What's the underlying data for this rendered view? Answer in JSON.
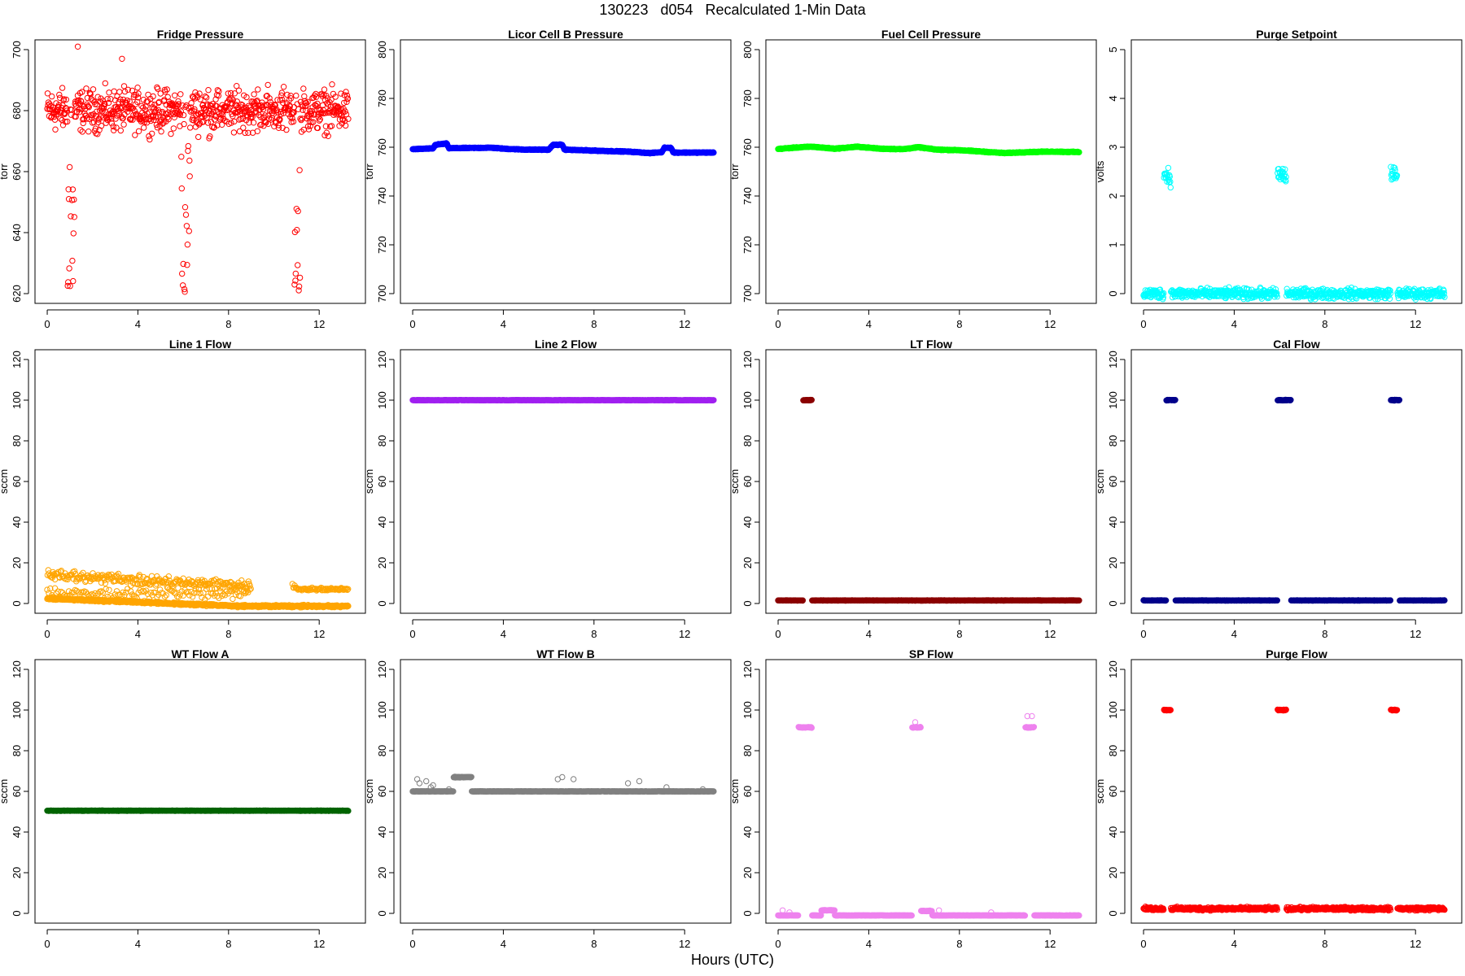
{
  "title": "130223   d054   Recalculated 1-Min Data",
  "xlabel": "Hours (UTC)",
  "chart_data": [
    {
      "type": "scatter",
      "title": "Fridge Pressure",
      "ylabel": "torr",
      "color": "#ff0000",
      "xlim": [
        0,
        13.5
      ],
      "ylim": [
        620,
        700
      ],
      "xticks": [
        0,
        4,
        8,
        12
      ],
      "yticks": [
        620,
        640,
        660,
        680,
        700
      ],
      "pattern": "scatter",
      "base": 680,
      "spread": 10,
      "dips": [
        [
          0.9,
          1.2,
          618,
          665
        ],
        [
          5.9,
          6.3,
          617,
          670
        ],
        [
          10.9,
          11.2,
          619,
          668
        ]
      ],
      "extra": [
        [
          1.35,
          701
        ],
        [
          3.3,
          697
        ]
      ]
    },
    {
      "type": "scatter",
      "title": "Licor Cell B Pressure",
      "ylabel": "torr",
      "color": "#0000ff",
      "xlim": [
        0,
        13.5
      ],
      "ylim": [
        700,
        800
      ],
      "xticks": [
        0,
        4,
        8,
        12
      ],
      "yticks": [
        700,
        720,
        740,
        760,
        780,
        800
      ],
      "pattern": "line",
      "points": [
        [
          0,
          759.2
        ],
        [
          0.9,
          759.5
        ],
        [
          1.0,
          761
        ],
        [
          1.5,
          761.5
        ],
        [
          1.6,
          759.6
        ],
        [
          3.5,
          759.8
        ],
        [
          4.0,
          759.4
        ],
        [
          5.0,
          759
        ],
        [
          6.0,
          759
        ],
        [
          6.2,
          761
        ],
        [
          6.6,
          761
        ],
        [
          6.7,
          759
        ],
        [
          8,
          758.6
        ],
        [
          9.5,
          758.2
        ],
        [
          10.5,
          757.6
        ],
        [
          11.0,
          758
        ],
        [
          11.1,
          759.8
        ],
        [
          11.4,
          759.8
        ],
        [
          11.5,
          757.8
        ],
        [
          13.3,
          757.8
        ]
      ]
    },
    {
      "type": "scatter",
      "title": "Fuel Cell Pressure",
      "ylabel": "torr",
      "color": "#00ff00",
      "xlim": [
        0,
        13.5
      ],
      "ylim": [
        700,
        800
      ],
      "xticks": [
        0,
        4,
        8,
        12
      ],
      "yticks": [
        700,
        720,
        740,
        760,
        780,
        800
      ],
      "pattern": "line",
      "points": [
        [
          0,
          759.3
        ],
        [
          1.0,
          760.0
        ],
        [
          1.5,
          760.2
        ],
        [
          2.5,
          759.4
        ],
        [
          3.5,
          760.2
        ],
        [
          4.5,
          759.4
        ],
        [
          5.5,
          759.2
        ],
        [
          6.2,
          760.0
        ],
        [
          7.0,
          759.0
        ],
        [
          8.0,
          758.8
        ],
        [
          9.0,
          758.2
        ],
        [
          10.0,
          757.6
        ],
        [
          11.0,
          758.0
        ],
        [
          12.0,
          758.2
        ],
        [
          13.3,
          758.0
        ]
      ]
    },
    {
      "type": "scatter",
      "title": "Purge Setpoint",
      "ylabel": "volts",
      "color": "#00ffff",
      "xlim": [
        0,
        13.5
      ],
      "ylim": [
        0,
        5
      ],
      "xticks": [
        0,
        4,
        8,
        12
      ],
      "yticks": [
        0,
        1,
        2,
        3,
        4,
        5
      ],
      "pattern": "flat",
      "base": 0,
      "blocks": [
        [
          0.9,
          1.2,
          2.42
        ],
        [
          5.9,
          6.3,
          2.42
        ],
        [
          10.9,
          11.2,
          2.42
        ]
      ]
    },
    {
      "type": "scatter",
      "title": "Line 1 Flow",
      "ylabel": "sccm",
      "color": "#ffa500",
      "xlim": [
        0,
        13.5
      ],
      "ylim": [
        0,
        120
      ],
      "xticks": [
        0,
        4,
        8,
        12
      ],
      "yticks": [
        0,
        20,
        40,
        60,
        80,
        100,
        120
      ],
      "pattern": "decay"
    },
    {
      "type": "scatter",
      "title": "Line 2 Flow",
      "ylabel": "sccm",
      "color": "#a020f0",
      "xlim": [
        0,
        13.5
      ],
      "ylim": [
        0,
        120
      ],
      "xticks": [
        0,
        4,
        8,
        12
      ],
      "yticks": [
        0,
        20,
        40,
        60,
        80,
        100,
        120
      ],
      "pattern": "flat",
      "base": 100,
      "blocks": []
    },
    {
      "type": "scatter",
      "title": "LT Flow",
      "ylabel": "sccm",
      "color": "#8b0000",
      "xlim": [
        0,
        13.5
      ],
      "ylim": [
        0,
        120
      ],
      "xticks": [
        0,
        4,
        8,
        12
      ],
      "yticks": [
        0,
        20,
        40,
        60,
        80,
        100,
        120
      ],
      "pattern": "flat",
      "base": 1.5,
      "blocks": [
        [
          1.1,
          1.5,
          100
        ]
      ]
    },
    {
      "type": "scatter",
      "title": "Cal Flow",
      "ylabel": "sccm",
      "color": "#00008b",
      "xlim": [
        0,
        13.5
      ],
      "ylim": [
        0,
        120
      ],
      "xticks": [
        0,
        4,
        8,
        12
      ],
      "yticks": [
        0,
        20,
        40,
        60,
        80,
        100,
        120
      ],
      "pattern": "flat",
      "base": 1.5,
      "blocks": [
        [
          1.0,
          1.4,
          100
        ],
        [
          5.9,
          6.5,
          100
        ],
        [
          10.9,
          11.3,
          100
        ]
      ]
    },
    {
      "type": "scatter",
      "title": "WT Flow A",
      "ylabel": "sccm",
      "color": "#006400",
      "xlim": [
        0,
        13.5
      ],
      "ylim": [
        0,
        120
      ],
      "xticks": [
        0,
        4,
        8,
        12
      ],
      "yticks": [
        0,
        20,
        40,
        60,
        80,
        100,
        120
      ],
      "pattern": "flat",
      "base": 50.5,
      "blocks": []
    },
    {
      "type": "scatter",
      "title": "WT Flow B",
      "ylabel": "sccm",
      "color": "#808080",
      "xlim": [
        0,
        13.5
      ],
      "ylim": [
        0,
        120
      ],
      "xticks": [
        0,
        4,
        8,
        12
      ],
      "yticks": [
        0,
        20,
        40,
        60,
        80,
        100,
        120
      ],
      "pattern": "flat",
      "base": 60,
      "blocks": [
        [
          1.8,
          2.6,
          67
        ]
      ],
      "extra": [
        [
          0.2,
          66
        ],
        [
          0.3,
          64
        ],
        [
          0.6,
          65
        ],
        [
          0.8,
          62
        ],
        [
          0.9,
          63
        ],
        [
          1.6,
          61
        ],
        [
          6.4,
          66
        ],
        [
          6.6,
          67
        ],
        [
          7.1,
          66
        ],
        [
          9.5,
          64
        ],
        [
          10.0,
          65
        ],
        [
          11.2,
          62
        ],
        [
          12.8,
          61
        ]
      ]
    },
    {
      "type": "scatter",
      "title": "SP Flow",
      "ylabel": "sccm",
      "color": "#ee82ee",
      "xlim": [
        0,
        13.5
      ],
      "ylim": [
        0,
        120
      ],
      "xticks": [
        0,
        4,
        8,
        12
      ],
      "yticks": [
        0,
        20,
        40,
        60,
        80,
        100,
        120
      ],
      "pattern": "flat",
      "base": -1,
      "blocks": [
        [
          0.9,
          1.5,
          91.5
        ],
        [
          1.9,
          2.5,
          1.5
        ],
        [
          5.9,
          6.5,
          91.5
        ],
        [
          10.9,
          11.3,
          91.5
        ],
        [
          6.3,
          6.8,
          1.2
        ]
      ],
      "extra": [
        [
          0.2,
          1.5
        ],
        [
          0.5,
          0.5
        ],
        [
          6.05,
          94
        ],
        [
          7.1,
          1.5
        ],
        [
          11.0,
          97
        ],
        [
          11.2,
          97
        ],
        [
          9.4,
          0.5
        ]
      ]
    },
    {
      "type": "scatter",
      "title": "Purge Flow",
      "ylabel": "sccm",
      "color": "#ff0000",
      "xlim": [
        0,
        13.5
      ],
      "ylim": [
        0,
        120
      ],
      "xticks": [
        0,
        4,
        8,
        12
      ],
      "yticks": [
        0,
        20,
        40,
        60,
        80,
        100,
        120
      ],
      "pattern": "flat",
      "base": 2.3,
      "jitter": 1.2,
      "blocks": [
        [
          0.9,
          1.2,
          100
        ],
        [
          5.9,
          6.3,
          100
        ],
        [
          10.9,
          11.2,
          100
        ]
      ]
    }
  ]
}
